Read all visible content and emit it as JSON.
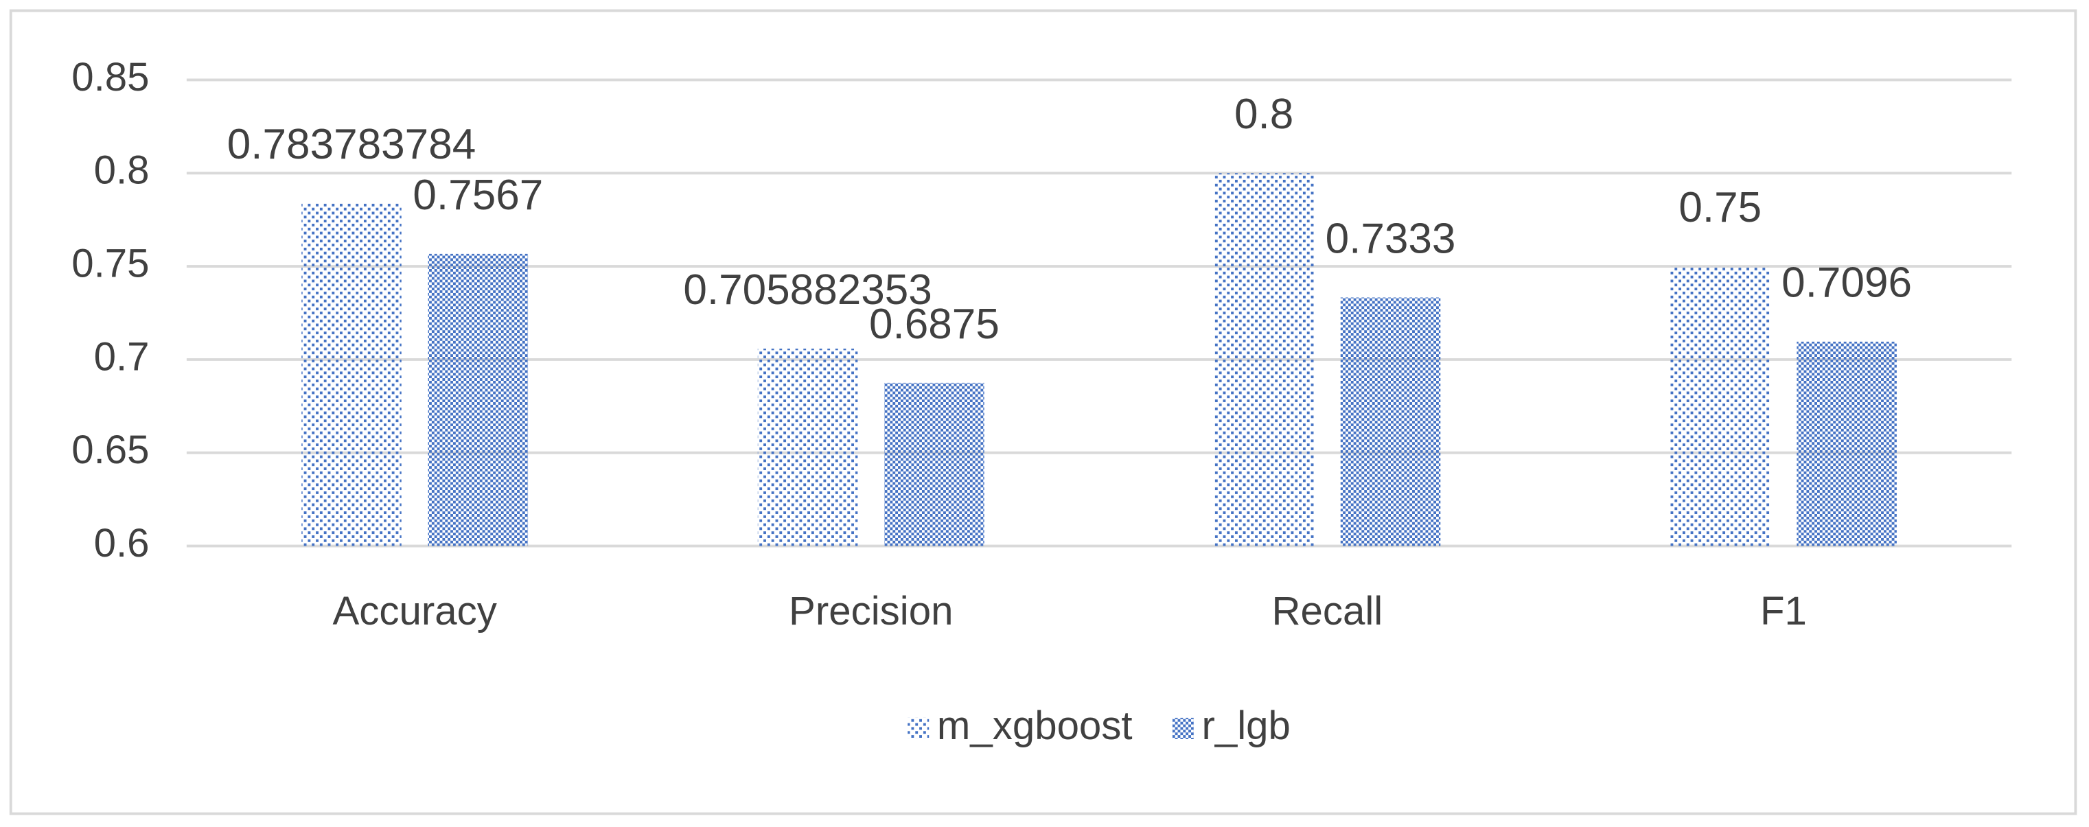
{
  "chart_data": {
    "type": "bar",
    "categories": [
      "Accuracy",
      "Precision",
      "Recall",
      "F1"
    ],
    "series": [
      {
        "name": "m_xgboost",
        "color": "#4472c4",
        "pattern": "sparse-dots",
        "values": [
          0.783783784,
          0.705882353,
          0.8,
          0.75
        ]
      },
      {
        "name": "r_lgb",
        "color": "#4472c4",
        "pattern": "dense-checker",
        "values": [
          0.7567,
          0.6875,
          0.7333,
          0.7096
        ]
      }
    ],
    "ylim": [
      0.6,
      0.85
    ],
    "yticks": [
      0.6,
      0.65,
      0.7,
      0.75,
      0.8,
      0.85
    ],
    "grid": true,
    "legend": "bottom"
  }
}
